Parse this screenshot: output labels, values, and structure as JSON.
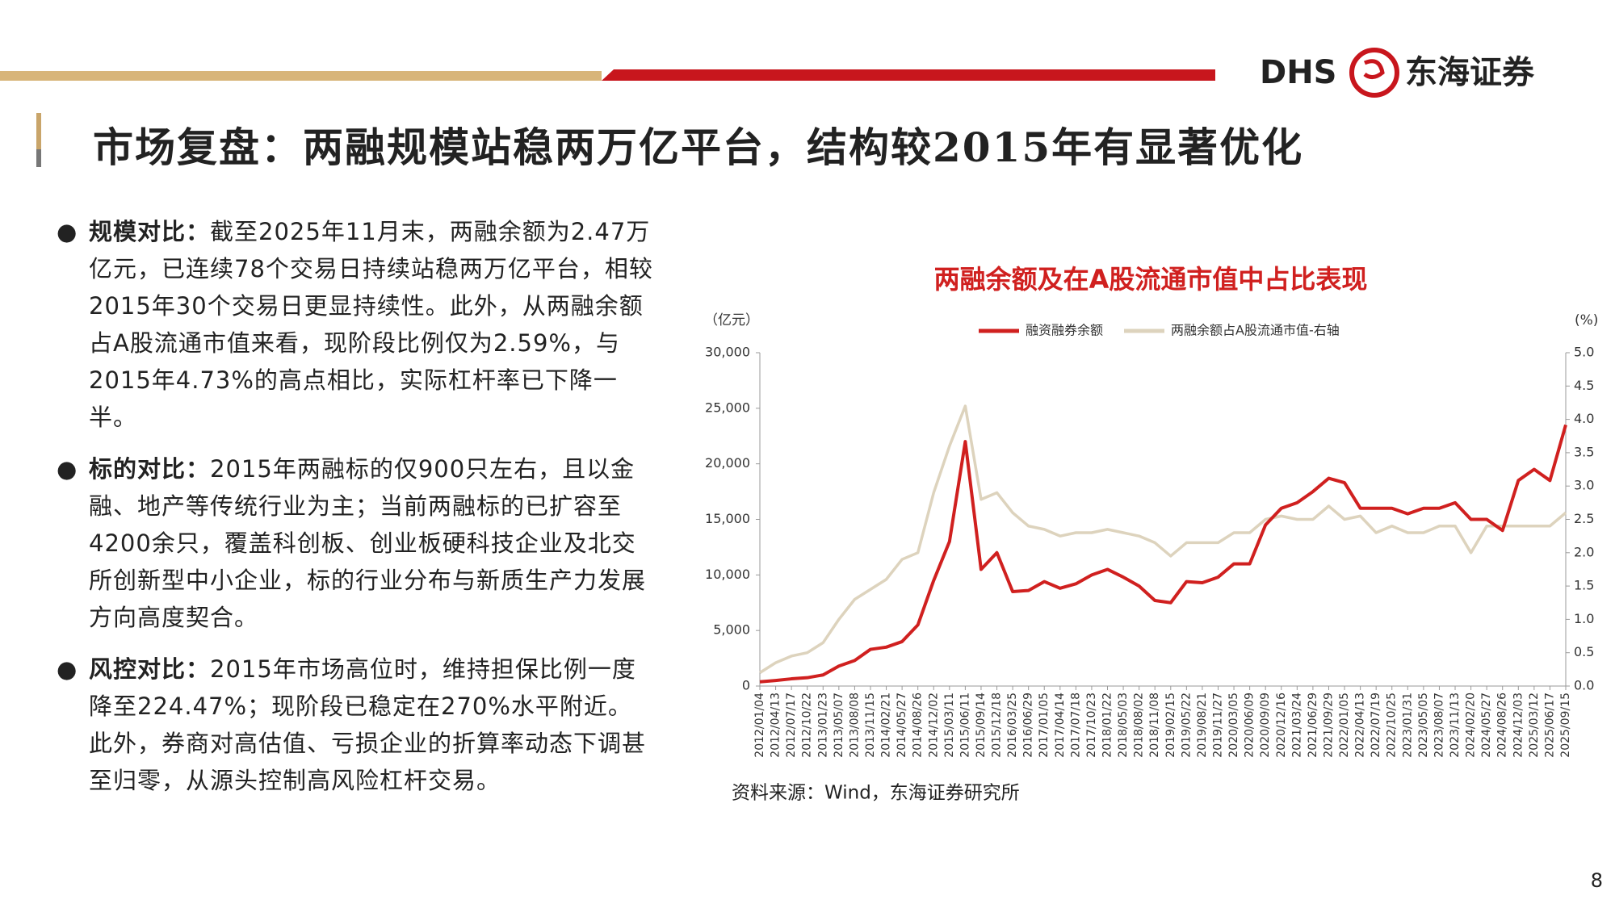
{
  "header": {
    "brand": "DHS",
    "company": "东海证券",
    "title": "市场复盘：两融规模站稳两万亿平台，结构较2015年有显著优化"
  },
  "content": {
    "bullets": [
      {
        "label": "规模对比：",
        "text": "截至2025年11月末，两融余额为2.47万亿元，已连续78个交易日持续站稳两万亿平台，相较2015年30个交易日更显持续性。此外，从两融余额占A股流通市值来看，现阶段比例仅为2.59%，与2015年4.73%的高点相比，实际杠杆率已下降一半。"
      },
      {
        "label": "标的对比：",
        "text": "2015年两融标的仅900只左右，且以金融、地产等传统行业为主；当前两融标的已扩容至4200余只，覆盖科创板、创业板硬科技企业及北交所创新型中小企业，标的行业分布与新质生产力发展方向高度契合。"
      },
      {
        "label": "风控对比：",
        "text": "2015年市场高位时，维持担保比例一度降至224.47%；现阶段已稳定在270%水平附近。此外，券商对高估值、亏损企业的折算率动态下调甚至归零，从源头控制高风险杠杆交易。"
      }
    ]
  },
  "page_number": "8",
  "chart_data": {
    "type": "line",
    "title": "两融余额及在A股流通市值中占比表现",
    "ylabel": "（亿元）",
    "y2label": "(%)",
    "source": "资料来源：Wind，东海证券研究所",
    "categories": [
      "2012/01/04",
      "2012/04/13",
      "2012/07/17",
      "2012/10/22",
      "2013/01/23",
      "2013/05/07",
      "2013/08/08",
      "2013/11/15",
      "2014/02/21",
      "2014/05/27",
      "2014/08/26",
      "2014/12/02",
      "2015/03/11",
      "2015/06/11",
      "2015/09/14",
      "2015/12/18",
      "2016/03/25",
      "2016/06/29",
      "2017/01/05",
      "2017/04/14",
      "2017/07/18",
      "2017/10/23",
      "2018/01/22",
      "2018/05/03",
      "2018/08/02",
      "2018/11/08",
      "2019/02/15",
      "2019/05/22",
      "2019/08/21",
      "2019/11/27",
      "2020/03/05",
      "2020/06/09",
      "2020/09/09",
      "2020/12/16",
      "2021/03/24",
      "2021/06/29",
      "2021/09/29",
      "2022/01/05",
      "2022/04/13",
      "2022/07/19",
      "2022/10/25",
      "2023/01/31",
      "2023/05/05",
      "2023/08/07",
      "2023/11/13",
      "2024/02/20",
      "2024/05/27",
      "2024/08/26",
      "2024/12/03",
      "2025/03/12",
      "2025/06/17",
      "2025/09/15"
    ],
    "series": [
      {
        "name": "融资融券余额",
        "color": "#d0201f",
        "values": [
          380,
          500,
          650,
          750,
          1000,
          1800,
          2300,
          3300,
          3500,
          4000,
          5500,
          9500,
          13000,
          22000,
          10500,
          12000,
          8500,
          8600,
          9400,
          8800,
          9200,
          10000,
          10500,
          9800,
          9000,
          7700,
          7500,
          9400,
          9300,
          9800,
          11000,
          11000,
          14500,
          16000,
          16500,
          17500,
          18700,
          18300,
          16000,
          16000,
          16000,
          15500,
          16000,
          16000,
          16500,
          15000,
          15000,
          14000,
          18500,
          19500,
          18500,
          23500
        ]
      },
      {
        "name": "两融余额占A股流通市值-右轴",
        "color": "#ddd3bd",
        "axis": "y2",
        "values": [
          0.2,
          0.35,
          0.45,
          0.5,
          0.65,
          1.0,
          1.3,
          1.45,
          1.6,
          1.9,
          2.0,
          2.9,
          3.6,
          4.2,
          2.8,
          2.9,
          2.6,
          2.4,
          2.35,
          2.25,
          2.3,
          2.3,
          2.35,
          2.3,
          2.25,
          2.15,
          1.95,
          2.15,
          2.15,
          2.15,
          2.3,
          2.3,
          2.5,
          2.55,
          2.5,
          2.5,
          2.7,
          2.5,
          2.55,
          2.3,
          2.4,
          2.3,
          2.3,
          2.4,
          2.4,
          2.0,
          2.4,
          2.4,
          2.4,
          2.4,
          2.4,
          2.6
        ]
      }
    ],
    "ylim": [
      0,
      30000
    ],
    "yticks": [
      0,
      {
        "value": 5000,
        "label": "5,000"
      },
      {
        "value": 10000,
        "label": "10,000"
      },
      {
        "value": 15000,
        "label": "15,000"
      },
      {
        "value": 20000,
        "label": "20,000"
      },
      {
        "value": 25000,
        "label": "25,000"
      },
      {
        "value": 30000,
        "label": "30,000"
      }
    ],
    "y2lim": [
      0,
      5
    ],
    "y2ticks": [
      {
        "value": 0,
        "label": "0.0"
      },
      {
        "value": 0.5,
        "label": "0.5"
      },
      {
        "value": 1,
        "label": "1.0"
      },
      {
        "value": 1.5,
        "label": "1.5"
      },
      {
        "value": 2,
        "label": "2.0"
      },
      {
        "value": 2.5,
        "label": "2.5"
      },
      {
        "value": 3,
        "label": "3.0"
      },
      {
        "value": 3.5,
        "label": "3.5"
      },
      {
        "value": 4,
        "label": "4.0"
      },
      {
        "value": 4.5,
        "label": "4.5"
      },
      {
        "value": 5,
        "label": "5.0"
      }
    ],
    "grid": false,
    "legend": "top"
  }
}
